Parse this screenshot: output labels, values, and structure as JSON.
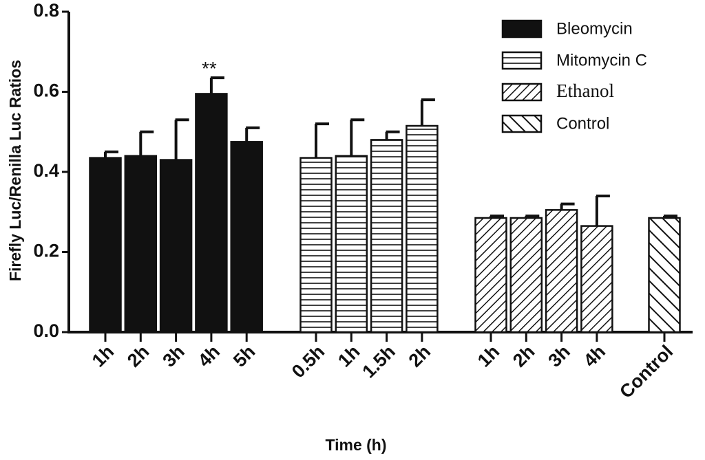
{
  "chart_data": {
    "type": "bar",
    "title": "",
    "xlabel": "Time (h)",
    "ylabel": "Firefly Luc/Renilla Luc Ratios",
    "ylim": [
      0,
      0.8
    ],
    "yticks": [
      0.0,
      0.2,
      0.4,
      0.6,
      0.8
    ],
    "ytick_labels": [
      "0.0",
      "0.2",
      "0.4",
      "0.6",
      "0.8"
    ],
    "legend_position": "top-right",
    "series": [
      {
        "name": "Bleomycin",
        "pattern": "solid",
        "categories": [
          "1h",
          "2h",
          "3h",
          "4h",
          "5h"
        ],
        "values": [
          0.435,
          0.44,
          0.43,
          0.595,
          0.475
        ],
        "errors": [
          0.015,
          0.06,
          0.1,
          0.04,
          0.035
        ]
      },
      {
        "name": "Mitomycin C",
        "pattern": "horizontal",
        "categories": [
          "0.5h",
          "1h",
          "1.5h",
          "2h"
        ],
        "values": [
          0.435,
          0.44,
          0.48,
          0.515
        ],
        "errors": [
          0.085,
          0.09,
          0.02,
          0.065
        ]
      },
      {
        "name": "Ethanol",
        "pattern": "back-diagonal",
        "categories": [
          "1h",
          "2h",
          "3h",
          "4h"
        ],
        "values": [
          0.285,
          0.285,
          0.305,
          0.265
        ],
        "errors": [
          0.005,
          0.005,
          0.015,
          0.075
        ]
      },
      {
        "name": "Control",
        "pattern": "forward-diagonal",
        "categories": [
          "Control"
        ],
        "values": [
          0.285
        ],
        "errors": [
          0.005
        ]
      }
    ],
    "annotations": [
      {
        "text": "**",
        "series": 0,
        "index": 3
      }
    ]
  },
  "colors": {
    "ink": "#111111",
    "background": "#ffffff"
  }
}
